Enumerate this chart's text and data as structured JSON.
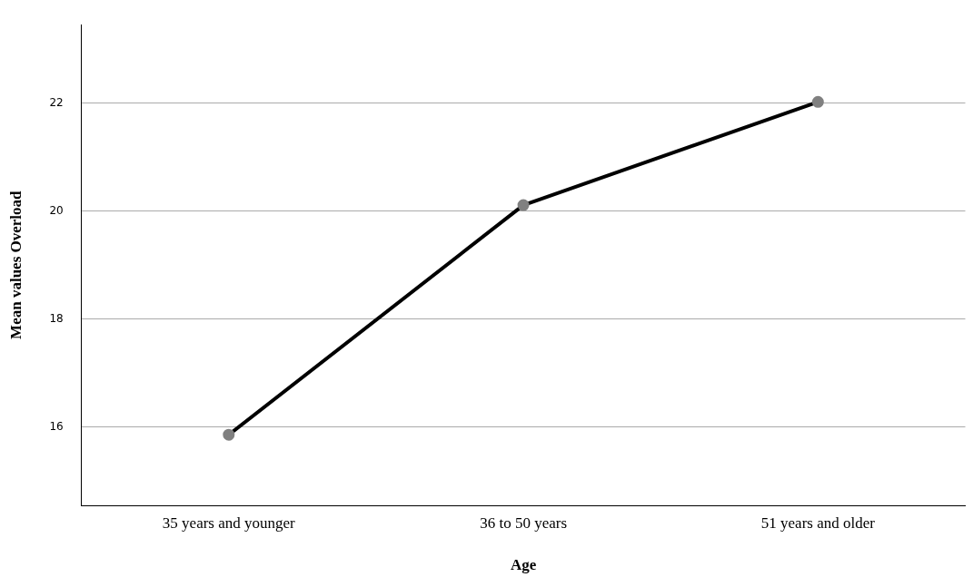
{
  "chart_data": {
    "type": "line",
    "xlabel": "Age",
    "ylabel": "Mean values Overload",
    "categories": [
      "35 years and younger",
      "36 to 50 years",
      "51 years and older"
    ],
    "series": [
      {
        "color": "#000000",
        "colors": [
          "#808080",
          "#808080",
          "#808080"
        ],
        "values": [
          15.86,
          20.11,
          22.02
        ]
      }
    ],
    "ylim": [
      14.55,
      23.45
    ],
    "yticks": [
      16,
      18,
      20,
      22
    ],
    "grid": "y",
    "legend": false,
    "marker": "circle",
    "line_style": "solid"
  }
}
